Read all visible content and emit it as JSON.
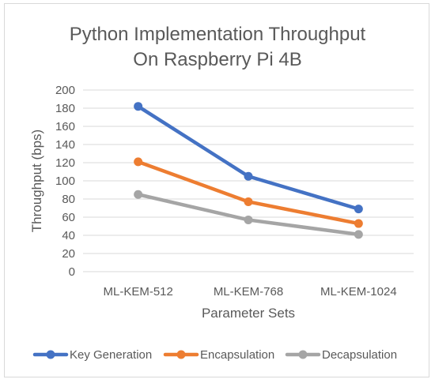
{
  "chart_data": {
    "type": "line",
    "title_lines": [
      "Python Implementation Throughput",
      "On Raspberry Pi 4B"
    ],
    "xlabel": "Parameter Sets",
    "ylabel": "Throughput (bps)",
    "categories": [
      "ML-KEM-512",
      "ML-KEM-768",
      "ML-KEM-1024"
    ],
    "ylim": [
      0,
      200
    ],
    "yticks": [
      "0",
      "20",
      "40",
      "60",
      "80",
      "100",
      "120",
      "140",
      "160",
      "180",
      "200"
    ],
    "grid": true,
    "legend_position": "bottom",
    "series": [
      {
        "name": "Key Generation",
        "color": "#4472c4",
        "values": [
          182,
          105,
          69
        ]
      },
      {
        "name": "Encapsulation",
        "color": "#ed7d31",
        "values": [
          121,
          77,
          53
        ]
      },
      {
        "name": "Decapsulation",
        "color": "#a5a5a5",
        "values": [
          85,
          57,
          41
        ]
      }
    ]
  }
}
